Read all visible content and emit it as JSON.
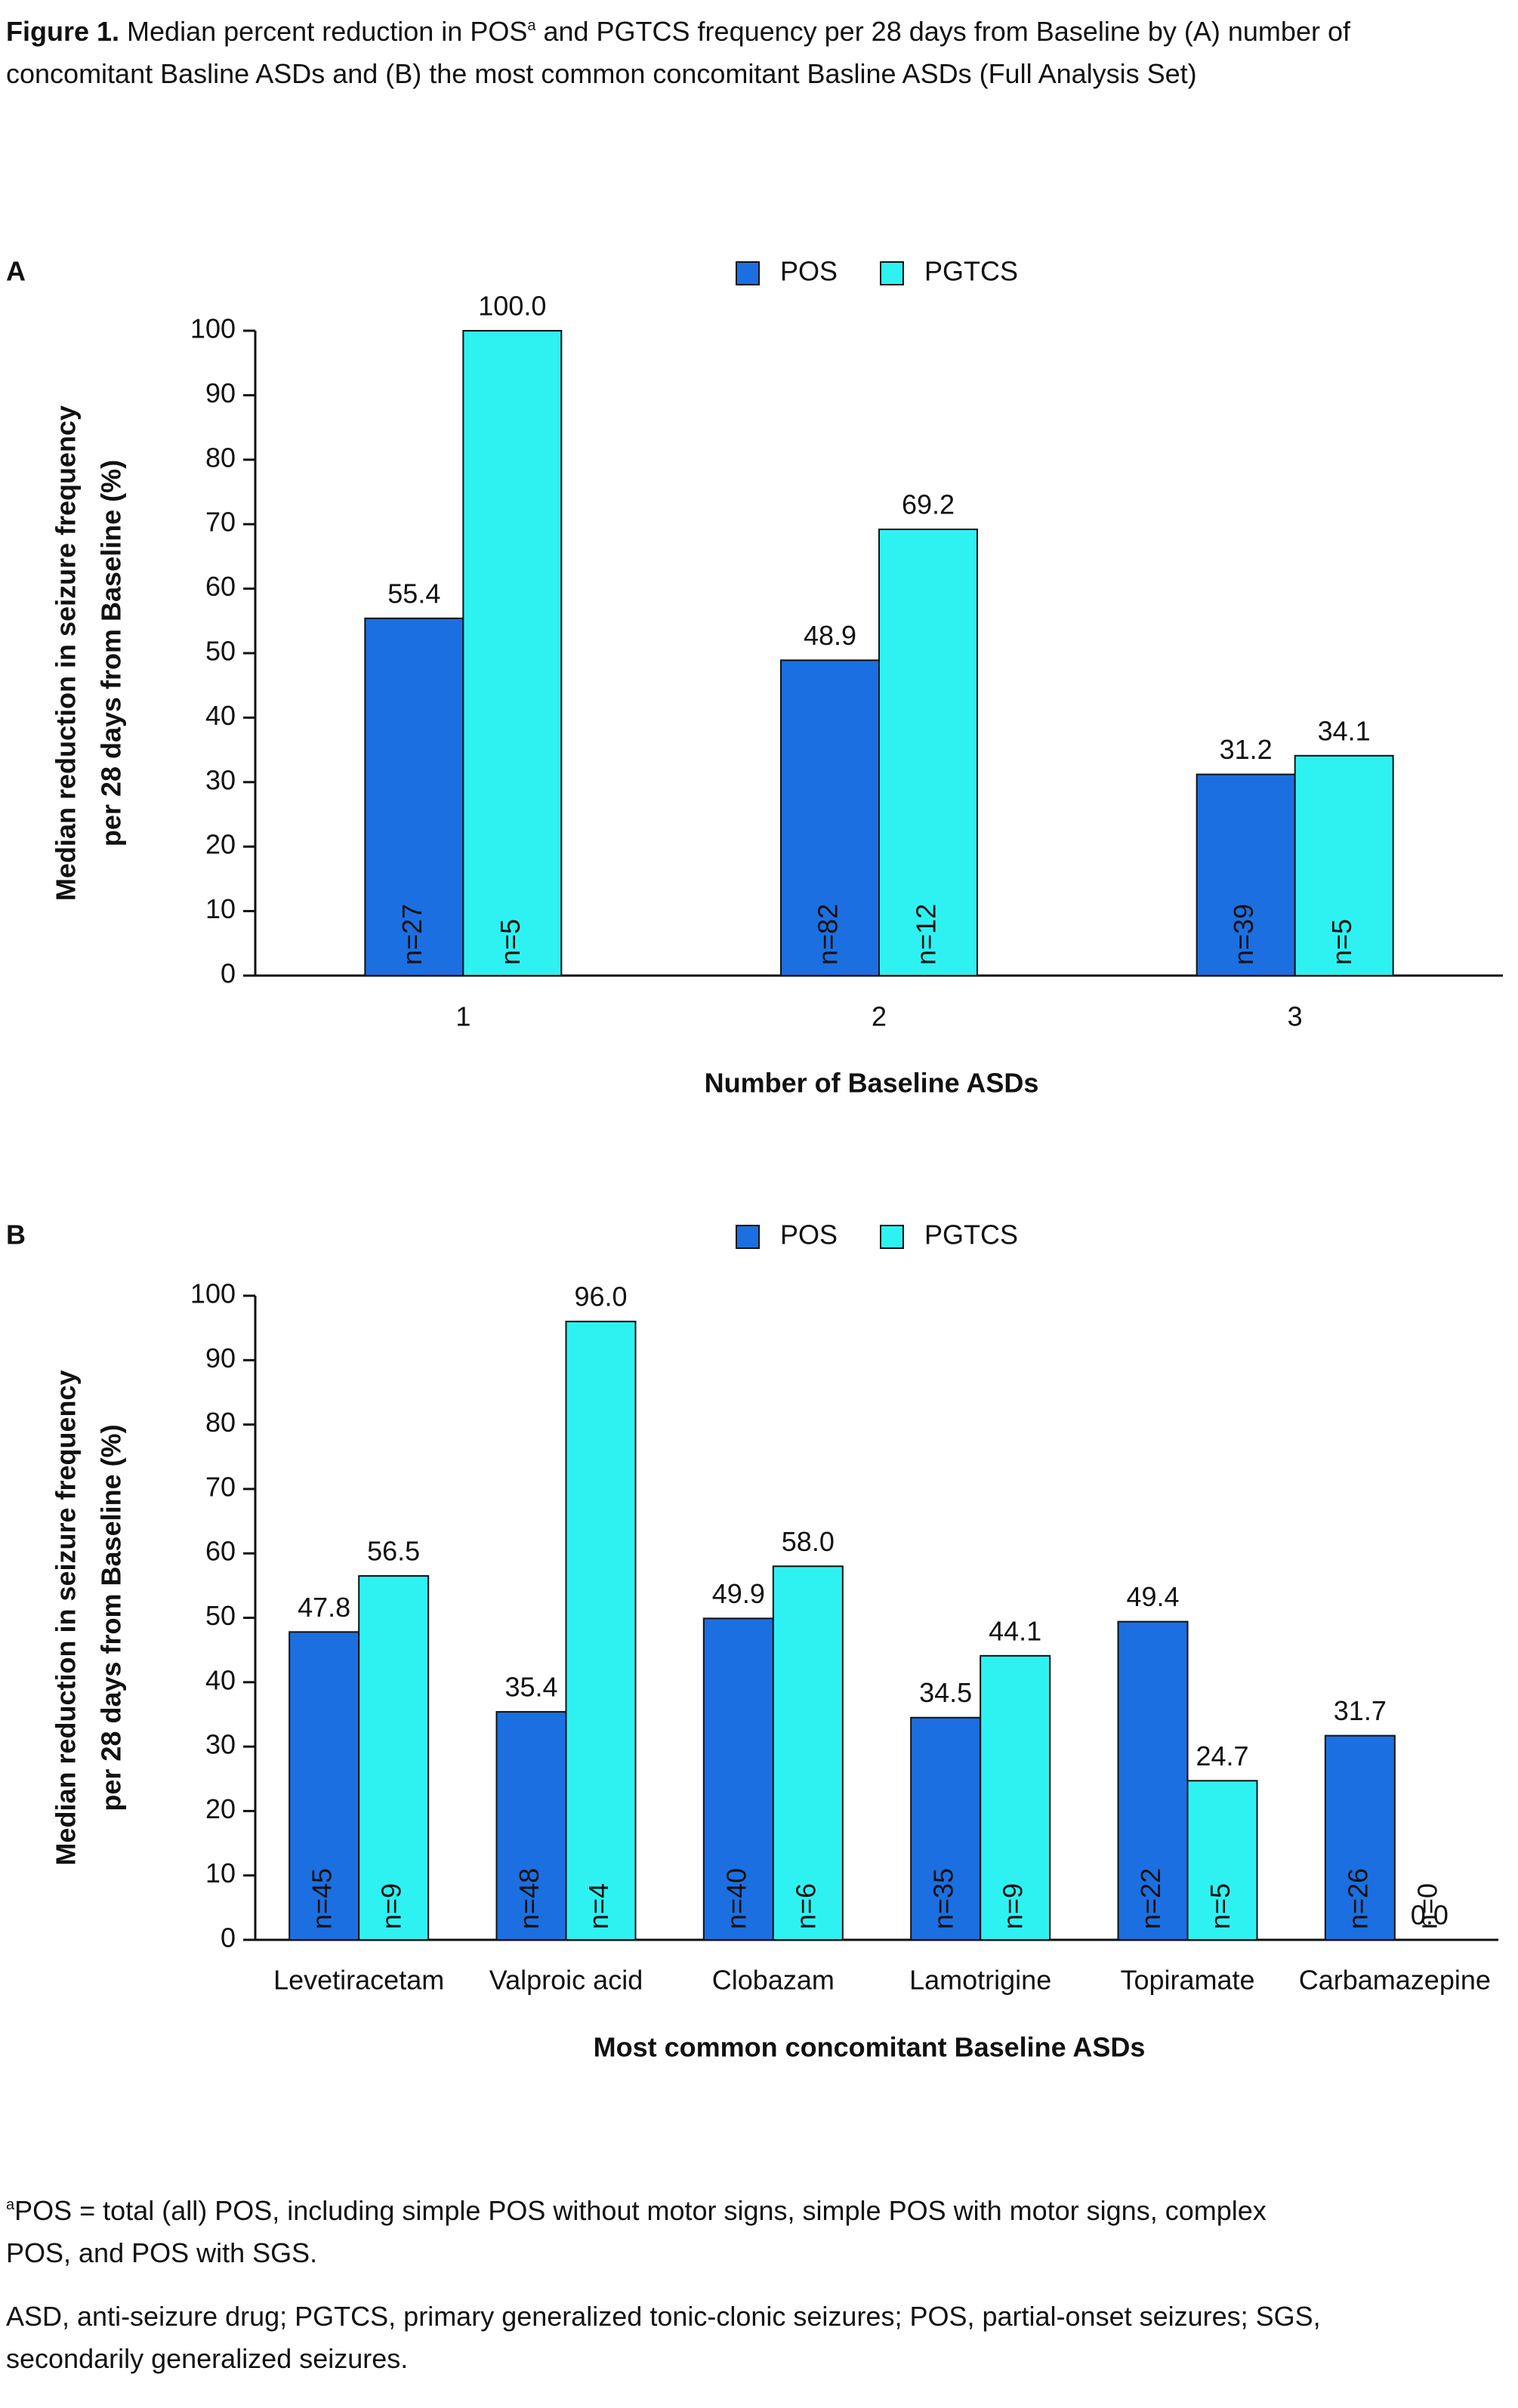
{
  "caption": {
    "label": "Figure 1.",
    "text_before": "Median percent reduction in POS",
    "sup": "a",
    "text_after": " and PGTCS frequency per 28 days from Baseline by (A) number of concomitant Basline ASDs and (B) the most common concomitant Basline ASDs (Full Analysis Set)"
  },
  "chart_data": [
    {
      "type": "bar",
      "panel": "A",
      "x_label": "Number of Baseline ASDs",
      "y_label": [
        "Median reduction in seizure frequency",
        "per 28 days from Baseline (%)"
      ],
      "categories": [
        "1",
        "2",
        "3"
      ],
      "series": [
        {
          "name": "POS",
          "color": "#1c6fe0",
          "values": [
            55.4,
            48.9,
            31.2
          ],
          "value_labels": [
            "55.4",
            "48.9",
            "31.2"
          ],
          "n_labels": [
            "n=27",
            "n=82",
            "n=39"
          ]
        },
        {
          "name": "PGTCS",
          "color": "#2ef2f2",
          "values": [
            100.0,
            69.2,
            34.1
          ],
          "value_labels": [
            "100.0",
            "69.2",
            "34.1"
          ],
          "n_labels": [
            "n=5",
            "n=12",
            "n=5"
          ]
        }
      ],
      "ylim": [
        0,
        100
      ],
      "yticks": [
        0,
        10,
        20,
        30,
        40,
        50,
        60,
        70,
        80,
        90,
        100
      ],
      "grid": false,
      "legend": "top"
    },
    {
      "type": "bar",
      "panel": "B",
      "x_label": "Most common concomitant Baseline ASDs",
      "y_label": [
        "Median reduction in seizure frequency",
        "per 28 days from Baseline (%)"
      ],
      "categories": [
        "Levetiracetam",
        "Valproic acid",
        "Clobazam",
        "Lamotrigine",
        "Topiramate",
        "Carbamazepine"
      ],
      "series": [
        {
          "name": "POS",
          "color": "#1c6fe0",
          "values": [
            47.8,
            35.4,
            49.9,
            34.5,
            49.4,
            31.7
          ],
          "value_labels": [
            "47.8",
            "35.4",
            "49.9",
            "34.5",
            "49.4",
            "31.7"
          ],
          "n_labels": [
            "n=45",
            "n=48",
            "n=40",
            "n=35",
            "n=22",
            "n=26"
          ]
        },
        {
          "name": "PGTCS",
          "color": "#2ef2f2",
          "values": [
            56.5,
            96.0,
            58.0,
            44.1,
            24.7,
            0.0
          ],
          "value_labels": [
            "56.5",
            "96.0",
            "58.0",
            "44.1",
            "24.7",
            "0.0"
          ],
          "n_labels": [
            "n=9",
            "n=4",
            "n=6",
            "n=9",
            "n=5",
            "n=0"
          ]
        }
      ],
      "ylim": [
        0,
        100
      ],
      "yticks": [
        0,
        10,
        20,
        30,
        40,
        50,
        60,
        70,
        80,
        90,
        100
      ],
      "grid": false,
      "legend": "top"
    }
  ],
  "footnotes": [
    {
      "sup": "a",
      "text": "POS = total (all) POS, including simple POS without motor signs, simple POS with motor signs, complex POS, and POS with SGS."
    },
    {
      "text": "ASD, anti-seizure drug; PGTCS, primary generalized tonic-clonic seizures; POS, partial-onset seizures; SGS, secondarily generalized seizures."
    }
  ]
}
